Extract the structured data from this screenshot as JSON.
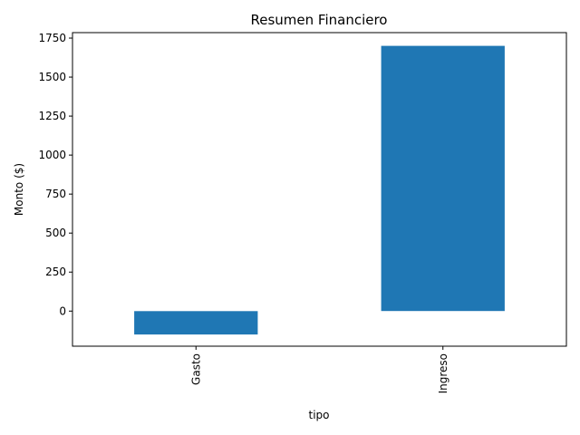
{
  "chart_data": {
    "type": "bar",
    "title": "Resumen Financiero",
    "xlabel": "tipo",
    "ylabel": "Monto ($)",
    "categories": [
      "Gasto",
      "Ingreso"
    ],
    "values": [
      -150,
      1700
    ],
    "ylim": [
      -225,
      1785
    ],
    "yticks": [
      0,
      250,
      500,
      750,
      1000,
      1250,
      1500,
      1750
    ],
    "bar_color": "#1f77b4",
    "grid": false,
    "legend": "none"
  }
}
